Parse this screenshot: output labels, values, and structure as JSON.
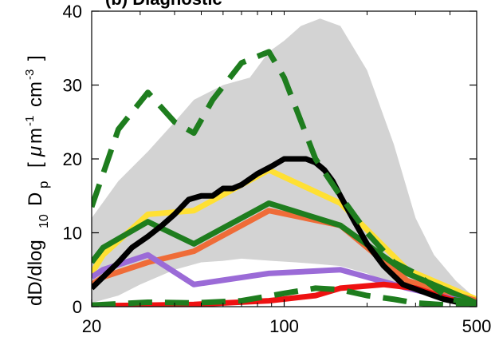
{
  "chart_data": {
    "type": "line",
    "title": "(b) Diagnostic",
    "xlabel": "",
    "ylabel": "dD/dlog 10 D p [ μm⁻¹ cm⁻³]",
    "ylabel_parts": {
      "a": "dD/dlog",
      "b": "10",
      "c": "D",
      "d": "p",
      "e": "[",
      "f": "μ",
      "g": "m",
      "h": "-1",
      "i": "cm",
      "j": "-3",
      "k": "]"
    },
    "x_scale": "log",
    "xlim": [
      20,
      500
    ],
    "ylim": [
      0,
      40
    ],
    "xticks": [
      {
        "value": 20,
        "label": "20"
      },
      {
        "value": 100,
        "label": "100"
      },
      {
        "value": 500,
        "label": "500"
      }
    ],
    "yticks": [
      {
        "value": 0,
        "label": "0"
      },
      {
        "value": 10,
        "label": "10"
      },
      {
        "value": 20,
        "label": "20"
      },
      {
        "value": 30,
        "label": "30"
      },
      {
        "value": 40,
        "label": "40"
      }
    ],
    "grid": false,
    "legend": "none",
    "band": {
      "color": "#d3d3d3",
      "upper": [
        [
          20,
          12
        ],
        [
          25,
          17
        ],
        [
          32,
          21
        ],
        [
          40,
          25
        ],
        [
          47,
          28
        ],
        [
          60,
          30
        ],
        [
          75,
          31
        ],
        [
          88,
          34.5
        ],
        [
          100,
          36
        ],
        [
          115,
          38
        ],
        [
          135,
          39
        ],
        [
          160,
          38
        ],
        [
          200,
          32
        ],
        [
          250,
          22
        ],
        [
          300,
          12
        ],
        [
          350,
          7
        ],
        [
          420,
          3.5
        ],
        [
          500,
          1
        ]
      ],
      "lower": [
        [
          20,
          0.5
        ],
        [
          25,
          1.5
        ],
        [
          30,
          3
        ],
        [
          40,
          5
        ],
        [
          50,
          6
        ],
        [
          60,
          6.2
        ],
        [
          70,
          6.5
        ],
        [
          90,
          6.2
        ],
        [
          110,
          6
        ],
        [
          130,
          5.8
        ],
        [
          160,
          5.5
        ],
        [
          200,
          4.5
        ],
        [
          250,
          3
        ],
        [
          300,
          2
        ],
        [
          350,
          1
        ],
        [
          420,
          0.5
        ],
        [
          500,
          0.2
        ]
      ]
    },
    "series": [
      {
        "color": "#ffe033",
        "style": "solid",
        "x": [
          20,
          22,
          32,
          47,
          88,
          160,
          280,
          500
        ],
        "y": [
          4.5,
          7,
          12.5,
          13,
          18.5,
          14,
          5,
          1
        ]
      },
      {
        "color": "#ef6c38",
        "style": "solid",
        "x": [
          20,
          22,
          32,
          47,
          88,
          160,
          280,
          500
        ],
        "y": [
          3,
          4,
          6,
          7.5,
          13,
          11,
          3.5,
          0.8
        ]
      },
      {
        "color": "#1e7d1e",
        "style": "solid",
        "x": [
          20,
          22,
          32,
          47,
          88,
          160,
          280,
          500
        ],
        "y": [
          6,
          8,
          11.5,
          8.5,
          14,
          11,
          4.5,
          0.5
        ]
      },
      {
        "color": "#9b6bd7",
        "style": "solid",
        "x": [
          20,
          22,
          32,
          47,
          88,
          160,
          280,
          500
        ],
        "y": [
          4,
          5,
          7,
          3,
          4.5,
          5,
          2.5,
          0.3
        ]
      },
      {
        "color": "#ee1111",
        "style": "solid",
        "x": [
          20,
          32,
          47,
          88,
          130,
          160,
          230,
          300,
          400,
          500
        ],
        "y": [
          0.1,
          0.2,
          0.3,
          0.8,
          1.5,
          2.5,
          3,
          2.5,
          1,
          0.3
        ]
      },
      {
        "color": "#000000",
        "style": "solid",
        "x": [
          20,
          22,
          25,
          28,
          32,
          36,
          40,
          45,
          50,
          55,
          60,
          65,
          70,
          80,
          90,
          100,
          110,
          120,
          130,
          140,
          150,
          160,
          180,
          200,
          230,
          270,
          320,
          380,
          440,
          500
        ],
        "y": [
          2.5,
          4,
          6,
          8,
          9.5,
          11,
          12.5,
          14.5,
          15,
          15,
          16,
          16,
          16.5,
          18,
          19,
          20,
          20,
          20,
          19.5,
          18.5,
          17,
          15,
          11.5,
          8.5,
          5.5,
          3,
          2,
          1,
          0.5,
          0
        ]
      },
      {
        "color": "#1e7d1e",
        "style": "dashed",
        "x": [
          20,
          25,
          32,
          40,
          47,
          55,
          70,
          88,
          100,
          130,
          160,
          200,
          250,
          300,
          400,
          500
        ],
        "y": [
          13.5,
          24,
          29,
          25,
          23.5,
          28,
          33,
          34.5,
          31,
          20,
          15,
          10,
          6,
          4.5,
          1,
          0.5
        ]
      },
      {
        "color": "#1e7d1e",
        "style": "dashed",
        "x": [
          20,
          32,
          47,
          70,
          100,
          130,
          160,
          200,
          250,
          300,
          400,
          500
        ],
        "y": [
          0.2,
          0.6,
          0.5,
          0.8,
          1.8,
          2.5,
          2.3,
          1.5,
          1,
          0.5,
          0.2,
          0.1
        ]
      }
    ]
  }
}
